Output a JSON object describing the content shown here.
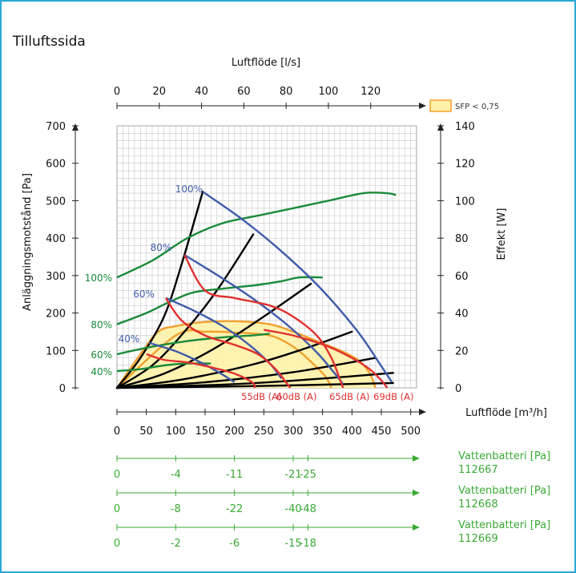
{
  "chart_data": {
    "type": "line",
    "title": "Tilluftssida",
    "top_axis": {
      "label": "Luftflöde [l/s]",
      "ticks": [
        0,
        20,
        40,
        60,
        80,
        100,
        120
      ],
      "range": [
        0,
        141.7
      ]
    },
    "xlabel": "Luftflöde [m³/h]",
    "xlim": [
      0,
      510
    ],
    "x_ticks": [
      0,
      50,
      100,
      150,
      200,
      250,
      300,
      350,
      400,
      450,
      500
    ],
    "ylabel": "Anläggningsmotstånd [Pa]",
    "ylim": [
      0,
      700
    ],
    "y_ticks": [
      0,
      100,
      200,
      300,
      400,
      500,
      600,
      700
    ],
    "y2label": "Effekt [W]",
    "y2lim": [
      0,
      140
    ],
    "y2_ticks": [
      0,
      20,
      40,
      60,
      80,
      100,
      120,
      140
    ],
    "grid": true,
    "legend": {
      "label": "SFP < 0,75",
      "color": "#fff2a8",
      "border": "#f0a030",
      "placement": "top-right"
    },
    "colors": {
      "fan_curve": "#3f5ba9",
      "system_curve": "#000000",
      "power_curve": "#1a8a3a",
      "sound_curve": "#e03030",
      "sfp": "#f0a030",
      "battery": "#3aaa35"
    },
    "fan_curves": [
      {
        "name": "100%",
        "points": [
          [
            146,
            524
          ],
          [
            215,
            448
          ],
          [
            285,
            358
          ],
          [
            350,
            260
          ],
          [
            410,
            150
          ],
          [
            450,
            58
          ],
          [
            468,
            15
          ]
        ]
      },
      {
        "name": "80%",
        "points": [
          [
            115,
            355
          ],
          [
            170,
            302
          ],
          [
            230,
            240
          ],
          [
            290,
            168
          ],
          [
            340,
            95
          ],
          [
            370,
            40
          ],
          [
            385,
            10
          ]
        ]
      },
      {
        "name": "60%",
        "points": [
          [
            83,
            240
          ],
          [
            130,
            207
          ],
          [
            180,
            165
          ],
          [
            225,
            115
          ],
          [
            260,
            65
          ],
          [
            280,
            25
          ]
        ]
      },
      {
        "name": "40%",
        "points": [
          [
            55,
            120
          ],
          [
            100,
            98
          ],
          [
            140,
            70
          ],
          [
            175,
            40
          ],
          [
            200,
            15
          ]
        ]
      }
    ],
    "system_curves": [
      {
        "points": [
          [
            0,
            0
          ],
          [
            40,
            80
          ],
          [
            80,
            190
          ],
          [
            110,
            330
          ],
          [
            146,
            524
          ]
        ]
      },
      {
        "points": [
          [
            0,
            0
          ],
          [
            60,
            60
          ],
          [
            115,
            150
          ],
          [
            170,
            260
          ],
          [
            232,
            410
          ]
        ]
      },
      {
        "points": [
          [
            0,
            0
          ],
          [
            80,
            38
          ],
          [
            160,
            100
          ],
          [
            240,
            180
          ],
          [
            330,
            278
          ]
        ]
      },
      {
        "points": [
          [
            0,
            0
          ],
          [
            110,
            22
          ],
          [
            230,
            62
          ],
          [
            320,
            105
          ],
          [
            400,
            150
          ]
        ]
      },
      {
        "points": [
          [
            0,
            0
          ],
          [
            150,
            15
          ],
          [
            300,
            42
          ],
          [
            440,
            80
          ]
        ]
      },
      {
        "points": [
          [
            0,
            0
          ],
          [
            200,
            10
          ],
          [
            350,
            25
          ],
          [
            470,
            40
          ]
        ]
      },
      {
        "points": [
          [
            0,
            0
          ],
          [
            240,
            5
          ],
          [
            470,
            13
          ]
        ]
      }
    ],
    "power_curves": [
      {
        "name": "100%",
        "points": [
          [
            0,
            59
          ],
          [
            60,
            68
          ],
          [
            120,
            80
          ],
          [
            180,
            88
          ],
          [
            240,
            92
          ],
          [
            300,
            96
          ],
          [
            360,
            100
          ],
          [
            420,
            104
          ],
          [
            460,
            104
          ],
          [
            475,
            103
          ]
        ]
      },
      {
        "name": "80%",
        "points": [
          [
            0,
            34
          ],
          [
            50,
            40
          ],
          [
            90,
            46
          ],
          [
            130,
            51
          ],
          [
            180,
            53
          ],
          [
            240,
            55
          ],
          [
            280,
            57
          ],
          [
            310,
            59
          ],
          [
            350,
            59
          ]
        ]
      },
      {
        "name": "60%",
        "points": [
          [
            0,
            18
          ],
          [
            60,
            22
          ],
          [
            120,
            25
          ],
          [
            180,
            27
          ],
          [
            230,
            28
          ],
          [
            260,
            29
          ]
        ]
      },
      {
        "name": "40%",
        "points": [
          [
            0,
            9
          ],
          [
            40,
            10
          ],
          [
            80,
            12
          ],
          [
            120,
            13
          ],
          [
            160,
            13
          ]
        ]
      }
    ],
    "sound_curves": [
      {
        "name": "55dB (A)",
        "points": [
          [
            50,
            90
          ],
          [
            80,
            75
          ],
          [
            120,
            68
          ],
          [
            160,
            55
          ],
          [
            200,
            38
          ],
          [
            230,
            15
          ],
          [
            235,
            0
          ]
        ]
      },
      {
        "name": "60dB (A)",
        "points": [
          [
            83,
            240
          ],
          [
            110,
            180
          ],
          [
            150,
            140
          ],
          [
            200,
            115
          ],
          [
            240,
            90
          ],
          [
            270,
            50
          ],
          [
            290,
            10
          ],
          [
            295,
            0
          ]
        ]
      },
      {
        "name": "65dB (A)",
        "points": [
          [
            115,
            355
          ],
          [
            150,
            260
          ],
          [
            200,
            240
          ],
          [
            260,
            220
          ],
          [
            300,
            190
          ],
          [
            340,
            140
          ],
          [
            365,
            80
          ],
          [
            380,
            20
          ],
          [
            385,
            0
          ]
        ]
      },
      {
        "name": "69dB (A)",
        "points": [
          [
            250,
            155
          ],
          [
            300,
            140
          ],
          [
            360,
            110
          ],
          [
            400,
            80
          ],
          [
            430,
            50
          ],
          [
            450,
            20
          ],
          [
            460,
            0
          ]
        ]
      }
    ],
    "sfp_region": {
      "label": "SFP < 0,75",
      "outer": [
        [
          0,
          0
        ],
        [
          40,
          90
        ],
        [
          70,
          150
        ],
        [
          100,
          165
        ],
        [
          140,
          175
        ],
        [
          200,
          178
        ],
        [
          260,
          170
        ],
        [
          300,
          150
        ],
        [
          340,
          125
        ],
        [
          380,
          100
        ],
        [
          410,
          75
        ],
        [
          430,
          40
        ],
        [
          440,
          0
        ]
      ],
      "inner": [
        [
          0,
          0
        ],
        [
          100,
          140
        ],
        [
          150,
          150
        ],
        [
          200,
          148
        ],
        [
          260,
          140
        ],
        [
          300,
          110
        ],
        [
          330,
          70
        ],
        [
          355,
          30
        ],
        [
          365,
          0
        ]
      ]
    },
    "battery_axes": [
      {
        "label": "Vattenbatteri [Pa]",
        "model": "112667",
        "ticks": [
          {
            "x": 0,
            "label": "0"
          },
          {
            "x": 100,
            "label": "-4"
          },
          {
            "x": 200,
            "label": "-11"
          },
          {
            "x": 300,
            "label": "-21"
          },
          {
            "x": 325,
            "label": "-25"
          }
        ]
      },
      {
        "label": "Vattenbatteri [Pa]",
        "model": "112668",
        "ticks": [
          {
            "x": 0,
            "label": "0"
          },
          {
            "x": 100,
            "label": "-8"
          },
          {
            "x": 200,
            "label": "-22"
          },
          {
            "x": 300,
            "label": "-40"
          },
          {
            "x": 325,
            "label": "-48"
          }
        ]
      },
      {
        "label": "Vattenbatteri [Pa]",
        "model": "112669",
        "ticks": [
          {
            "x": 0,
            "label": "0"
          },
          {
            "x": 100,
            "label": "-2"
          },
          {
            "x": 200,
            "label": "-6"
          },
          {
            "x": 300,
            "label": "-15"
          },
          {
            "x": 325,
            "label": "-18"
          }
        ]
      }
    ]
  }
}
